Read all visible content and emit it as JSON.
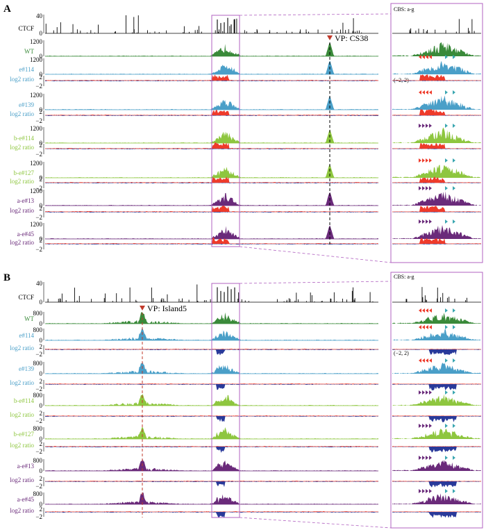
{
  "colors": {
    "ctcf": "#000000",
    "wt": "#3a8a3a",
    "e": "#4a9fc8",
    "b": "#8ec63f",
    "a": "#6a2a7a",
    "pos": "#ee3b2b",
    "neg": "#2a3a9a",
    "box": "#b060c0",
    "vp_marker": "#c0392b",
    "teal": "#3aa6b0"
  },
  "panels": [
    {
      "letter": "A",
      "vp_label": "VP: CS38",
      "cbs_label": "CBS: a-g",
      "ratio_range_label": "(−2, 2)",
      "tracks": [
        {
          "label": "CTCF",
          "kind": "ctcf",
          "color_key": "ctcf",
          "yticks": [
            "40",
            "0"
          ]
        },
        {
          "label": "WT",
          "kind": "cov",
          "color_key": "wt",
          "yticks": [
            "1200",
            "0"
          ]
        },
        {
          "label": "e#114",
          "kind": "cov",
          "color_key": "e",
          "yticks": [
            "1200",
            "0"
          ]
        },
        {
          "label": "log2 ratio",
          "kind": "ratio",
          "color_key": "e",
          "yticks": [
            "2",
            "−2"
          ]
        },
        {
          "label": "e#139",
          "kind": "cov",
          "color_key": "e",
          "yticks": [
            "1200",
            "0"
          ]
        },
        {
          "label": "log2 ratio",
          "kind": "ratio",
          "color_key": "e",
          "yticks": [
            "2",
            "−2"
          ]
        },
        {
          "label": "b-e#114",
          "kind": "cov",
          "color_key": "b",
          "yticks": [
            "1200",
            "0"
          ]
        },
        {
          "label": "log2 ratio",
          "kind": "ratio",
          "color_key": "b",
          "yticks": [
            "2",
            "−2"
          ]
        },
        {
          "label": "b-e#127",
          "kind": "cov",
          "color_key": "b",
          "yticks": [
            "1200",
            "0"
          ]
        },
        {
          "label": "log2 ratio",
          "kind": "ratio",
          "color_key": "b",
          "yticks": [
            "2",
            "−2"
          ]
        },
        {
          "label": "a-e#13",
          "kind": "cov",
          "color_key": "a",
          "yticks": [
            "1200",
            "0"
          ]
        },
        {
          "label": "log2 ratio",
          "kind": "ratio",
          "color_key": "a",
          "yticks": [
            "2",
            "−2"
          ]
        },
        {
          "label": "a-e#45",
          "kind": "cov",
          "color_key": "a",
          "yticks": [
            "1200",
            "0"
          ]
        },
        {
          "label": "log2 ratio",
          "kind": "ratio",
          "color_key": "a",
          "yticks": [
            "2",
            "−2"
          ]
        }
      ]
    },
    {
      "letter": "B",
      "vp_label": "VP: Island5",
      "cbs_label": "CBS: a-g",
      "ratio_range_label": "(−2, 2)",
      "tracks": [
        {
          "label": "CTCF",
          "kind": "ctcf",
          "color_key": "ctcf",
          "yticks": [
            "40",
            "0"
          ]
        },
        {
          "label": "WT",
          "kind": "cov",
          "color_key": "wt",
          "yticks": [
            "800",
            "0"
          ]
        },
        {
          "label": "e#114",
          "kind": "cov",
          "color_key": "e",
          "yticks": [
            "800",
            "0"
          ]
        },
        {
          "label": "log2 ratio",
          "kind": "ratio",
          "color_key": "e",
          "yticks": [
            "2",
            "−2"
          ]
        },
        {
          "label": "e#139",
          "kind": "cov",
          "color_key": "e",
          "yticks": [
            "800",
            "0"
          ]
        },
        {
          "label": "log2 ratio",
          "kind": "ratio",
          "color_key": "e",
          "yticks": [
            "2",
            "−2"
          ]
        },
        {
          "label": "b-e#114",
          "kind": "cov",
          "color_key": "b",
          "yticks": [
            "800",
            "0"
          ]
        },
        {
          "label": "log2 ratio",
          "kind": "ratio",
          "color_key": "b",
          "yticks": [
            "2",
            "−2"
          ]
        },
        {
          "label": "b-e#127",
          "kind": "cov",
          "color_key": "b",
          "yticks": [
            "800",
            "0"
          ]
        },
        {
          "label": "log2 ratio",
          "kind": "ratio",
          "color_key": "b",
          "yticks": [
            "2",
            "−2"
          ]
        },
        {
          "label": "a-e#13",
          "kind": "cov",
          "color_key": "a",
          "yticks": [
            "800",
            "0"
          ]
        },
        {
          "label": "log2 ratio",
          "kind": "ratio",
          "color_key": "a",
          "yticks": [
            "2",
            "−2"
          ]
        },
        {
          "label": "a-e#45",
          "kind": "cov",
          "color_key": "a",
          "yticks": [
            "800",
            "0"
          ]
        },
        {
          "label": "log2 ratio",
          "kind": "ratio",
          "color_key": "a",
          "yticks": [
            "2",
            "−2"
          ]
        }
      ]
    }
  ],
  "chart_data": [
    {
      "type": "area",
      "title": "",
      "ylim_coverage": [
        0,
        1200
      ],
      "ylim_ctcf": [
        0,
        40
      ],
      "ylim_ratio": [
        -2,
        2
      ],
      "series": [
        "CTCF",
        "WT",
        "e#114",
        "e#139",
        "b-e#114",
        "b-e#127",
        "a-e#13",
        "a-e#45"
      ],
      "viewpoint": "CS38"
    },
    {
      "type": "area",
      "title": "",
      "ylim_coverage": [
        0,
        800
      ],
      "ylim_ctcf": [
        0,
        40
      ],
      "ylim_ratio": [
        -2,
        2
      ],
      "series": [
        "CTCF",
        "WT",
        "e#114",
        "e#139",
        "b-e#114",
        "b-e#127",
        "a-e#13",
        "a-e#45"
      ],
      "viewpoint": "Island5"
    }
  ]
}
